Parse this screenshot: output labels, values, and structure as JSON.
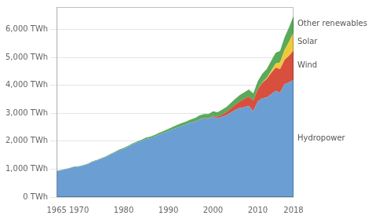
{
  "chart_data": {
    "type": "area",
    "stacked": true,
    "grid": true,
    "x": [
      1965,
      1966,
      1967,
      1968,
      1969,
      1970,
      1971,
      1972,
      1973,
      1974,
      1975,
      1976,
      1977,
      1978,
      1979,
      1980,
      1981,
      1982,
      1983,
      1984,
      1985,
      1986,
      1987,
      1988,
      1989,
      1990,
      1991,
      1992,
      1993,
      1994,
      1995,
      1996,
      1997,
      1998,
      1999,
      2000,
      2001,
      2002,
      2003,
      2004,
      2005,
      2006,
      2007,
      2008,
      2009,
      2010,
      2011,
      2012,
      2013,
      2014,
      2015,
      2016,
      2017,
      2018
    ],
    "series": [
      {
        "name": "Hydropower",
        "color": "#6b9fd4",
        "values": [
          923,
          960,
          993,
          1036,
          1082,
          1089,
          1133,
          1180,
          1263,
          1310,
          1368,
          1430,
          1510,
          1590,
          1668,
          1720,
          1800,
          1880,
          1950,
          2010,
          2080,
          2110,
          2170,
          2240,
          2300,
          2360,
          2430,
          2490,
          2550,
          2600,
          2660,
          2700,
          2780,
          2820,
          2800,
          2880,
          2820,
          2870,
          2930,
          3030,
          3120,
          3190,
          3220,
          3260,
          3080,
          3420,
          3530,
          3560,
          3680,
          3800,
          3740,
          4040,
          4100,
          4190
        ]
      },
      {
        "name": "Wind",
        "color": "#d94f3d",
        "values": [
          0,
          0,
          0,
          0,
          0,
          0,
          0,
          0,
          0,
          0,
          0,
          0,
          0,
          0,
          0,
          0,
          0,
          0,
          0,
          0,
          0,
          0,
          0,
          0,
          0,
          0,
          0,
          0,
          0,
          0,
          0,
          2,
          5,
          8,
          15,
          30,
          50,
          80,
          110,
          150,
          190,
          240,
          290,
          340,
          370,
          440,
          560,
          660,
          760,
          830,
          840,
          870,
          960,
          1050
        ]
      },
      {
        "name": "Solar",
        "color": "#f0c93a",
        "values": [
          0,
          0,
          0,
          0,
          0,
          0,
          0,
          0,
          0,
          0,
          0,
          0,
          0,
          0,
          0,
          0,
          0,
          0,
          0,
          0,
          0,
          0,
          0,
          0,
          0,
          0,
          0,
          0,
          0,
          0,
          0,
          0,
          0,
          0,
          0,
          0,
          0,
          0,
          0,
          0,
          0,
          0,
          0,
          0,
          0,
          5,
          15,
          35,
          80,
          150,
          240,
          350,
          500,
          650
        ]
      },
      {
        "name": "Other renewables",
        "color": "#5aaa5a",
        "values": [
          10,
          11,
          11,
          12,
          13,
          13,
          14,
          16,
          17,
          18,
          20,
          22,
          25,
          28,
          30,
          33,
          36,
          37,
          40,
          44,
          48,
          54,
          60,
          65,
          70,
          78,
          86,
          94,
          100,
          108,
          118,
          128,
          138,
          146,
          154,
          162,
          168,
          176,
          183,
          193,
          208,
          222,
          238,
          252,
          258,
          278,
          306,
          328,
          355,
          385,
          415,
          455,
          515,
          590
        ]
      }
    ],
    "xlim": [
      1965,
      2018
    ],
    "xticks": [
      1965,
      1970,
      1980,
      1990,
      2000,
      2010,
      2018
    ],
    "ylim": [
      0,
      6800
    ],
    "yticks": [
      {
        "value": 0,
        "label": "0 TWh"
      },
      {
        "value": 1000,
        "label": "1,000 TWh"
      },
      {
        "value": 2000,
        "label": "2,000 TWh"
      },
      {
        "value": 3000,
        "label": "3,000 TWh"
      },
      {
        "value": 4000,
        "label": "4,000 TWh"
      },
      {
        "value": 5000,
        "label": "5,000 TWh"
      },
      {
        "value": 6000,
        "label": "6,000 TWh"
      }
    ]
  }
}
